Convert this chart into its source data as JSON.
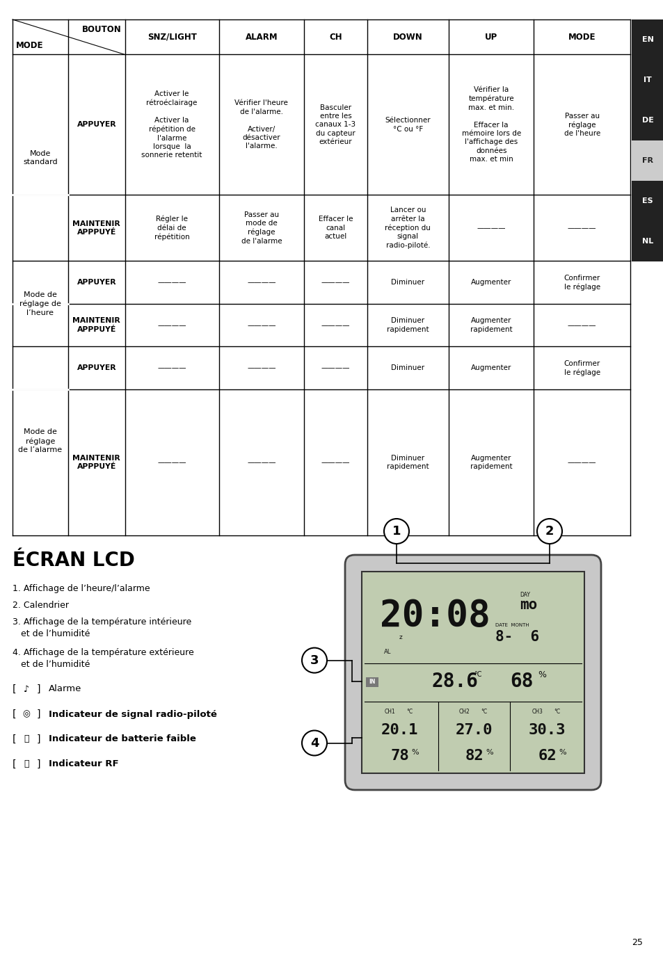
{
  "page_bg": "#ffffff",
  "sidebar_bg": "#222222",
  "sidebar_active_bg": "#cccccc",
  "sidebar_labels": [
    "EN",
    "IT",
    "DE",
    "FR",
    "ES",
    "NL"
  ],
  "sidebar_active": "FR",
  "sidebar_text_color": "#ffffff",
  "sidebar_active_text": "#222222",
  "section_title": "ÉCRAN LCD",
  "page_number": "25",
  "table_rows": [
    {
      "mode": "Mode\nstandard",
      "action": "APPUYER",
      "snz": "Activer le\nrétroéclairage\n\nActiver la\nrépétition de\nl'alarme\nlorsque  la\nsonnerie retentit",
      "alarm": "Vérifier l'heure\nde l'alarme.\n\nActiver/\ndésactiver\nl'alarme.",
      "ch": "Basculer\nentre les\ncanaux 1-3\ndu capteur\nextérieur",
      "down": "Sélectionner\n°C ou °F",
      "up": "Vérifier la\ntempérature\nmax. et min.\n\nEffacer la\nmémoire lors de\nl'affichage des\ndonnées\nmax. et min",
      "mode_col": "Passer au\nréglage\nde l'heure",
      "merge_rows": 1
    },
    {
      "mode": "",
      "action": "MAINTENIR\nAPPPUYÉ",
      "snz": "Régler le\ndélai de\nrépétition",
      "alarm": "Passer au\nmode de\nréglage\nde l'alarme",
      "ch": "Effacer le\ncanal\nactuel",
      "down": "Lancer ou\narrêter la\nréception du\nsignal\nradio-piloté.",
      "up": "————",
      "mode_col": "————",
      "merge_rows": 0
    },
    {
      "mode": "Mode de\nréglage de\nl'heure",
      "action": "APPUYER",
      "snz": "————",
      "alarm": "————",
      "ch": "————",
      "down": "Diminuer",
      "up": "Augmenter",
      "mode_col": "Confirmer\nle réglage",
      "merge_rows": 1
    },
    {
      "mode": "",
      "action": "MAINTENIR\nAPPPUYÉ",
      "snz": "————",
      "alarm": "————",
      "ch": "————",
      "down": "Diminuer\nrapidement",
      "up": "Augmenter\nrapidement",
      "mode_col": "————",
      "merge_rows": 0
    },
    {
      "mode": "Mode de\nréglage\nde l'alarme",
      "action": "APPUYER",
      "snz": "————",
      "alarm": "————",
      "ch": "————",
      "down": "Diminuer",
      "up": "Augmenter",
      "mode_col": "Confirmer\nle réglage",
      "merge_rows": 1
    },
    {
      "mode": "",
      "action": "MAINTENIR\nAPPPUYÉ",
      "snz": "————",
      "alarm": "————",
      "ch": "————",
      "down": "Diminuer\nrapidement",
      "up": "Augmenter\nrapidement",
      "mode_col": "————",
      "merge_rows": 0
    }
  ],
  "ecran_items": [
    "1. Affichage de l’heure/l’alarme",
    "2. Calendrier",
    "3. Affichage de la température intérieure\n   et de l’humidité",
    "4. Affichage de la température extérieure\n   et de l’humidité"
  ],
  "legend_items": [
    {
      "symbol": "bell",
      "text": "Alarme",
      "bold": false
    },
    {
      "symbol": "wifi",
      "text": "Indicateur de signal radio-piloté",
      "bold": true
    },
    {
      "symbol": "lock",
      "text": "Indicateur de batterie faible",
      "bold": true
    },
    {
      "symbol": "home",
      "text": "Indicateur RF",
      "bold": true
    }
  ]
}
